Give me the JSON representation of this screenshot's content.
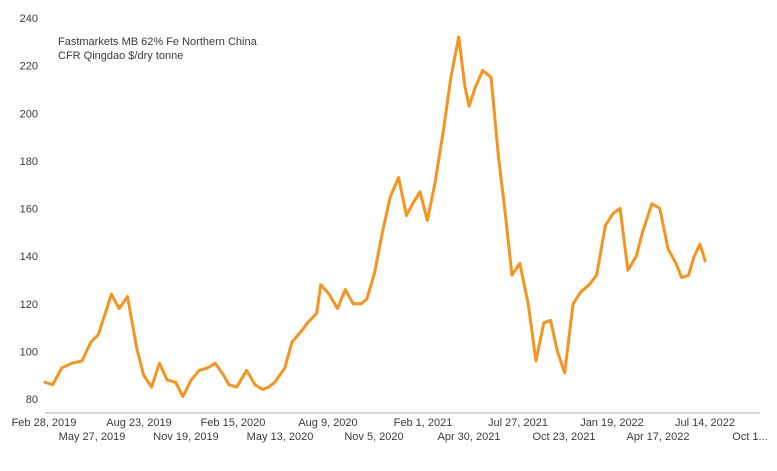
{
  "chart_data": {
    "type": "line",
    "title": "",
    "xlabel": "",
    "ylabel": "",
    "legend_lines": [
      "Fastmarkets MB 62% Fe Northern China",
      "CFR Qingdao $/dry tonne"
    ],
    "ylim": [
      80,
      240
    ],
    "y_ticks": [
      "80",
      "100",
      "120",
      "140",
      "160",
      "180",
      "200",
      "220",
      "240"
    ],
    "x_ticks_upper": [
      "Feb 28, 2019",
      "Aug 23, 2019",
      "Feb 15, 2020",
      "Aug 9, 2020",
      "Feb 1, 2021",
      "Jul 27, 2021",
      "Jan 19, 2022",
      "Jul 14, 2022"
    ],
    "x_ticks_lower": [
      "May 27, 2019",
      "Nov 19, 2019",
      "May 13, 2020",
      "Nov 5, 2020",
      "Apr 30, 2021",
      "Oct 23, 2021",
      "Apr 17, 2022",
      "Oct 1..."
    ],
    "x_range": [
      "2019-02-28",
      "2022-10-11"
    ],
    "grid": false,
    "legend_position": "top-left",
    "colors": {
      "series": "#f7941d",
      "axis": "#b0b0b0",
      "text": "#3a3a3a"
    },
    "series": [
      {
        "name": "Fastmarkets MB 62% Fe Northern China CFR Qingdao $/dry tonne",
        "x": [
          "2019-02-28",
          "2019-03-15",
          "2019-04-01",
          "2019-04-20",
          "2019-05-10",
          "2019-05-27",
          "2019-06-10",
          "2019-06-25",
          "2019-07-05",
          "2019-07-20",
          "2019-08-05",
          "2019-08-23",
          "2019-09-05",
          "2019-09-20",
          "2019-10-05",
          "2019-10-20",
          "2019-11-05",
          "2019-11-19",
          "2019-12-05",
          "2019-12-20",
          "2020-01-05",
          "2020-01-20",
          "2020-02-05",
          "2020-02-15",
          "2020-03-01",
          "2020-03-20",
          "2020-04-05",
          "2020-04-20",
          "2020-05-01",
          "2020-05-13",
          "2020-06-01",
          "2020-06-15",
          "2020-07-01",
          "2020-07-15",
          "2020-08-01",
          "2020-08-09",
          "2020-08-25",
          "2020-09-10",
          "2020-09-25",
          "2020-10-10",
          "2020-10-25",
          "2020-11-05",
          "2020-11-20",
          "2020-12-05",
          "2020-12-20",
          "2021-01-05",
          "2021-01-20",
          "2021-02-01",
          "2021-02-15",
          "2021-03-01",
          "2021-03-15",
          "2021-04-01",
          "2021-04-15",
          "2021-04-30",
          "2021-05-12",
          "2021-05-20",
          "2021-06-01",
          "2021-06-15",
          "2021-07-01",
          "2021-07-15",
          "2021-07-27",
          "2021-08-10",
          "2021-08-25",
          "2021-09-10",
          "2021-09-25",
          "2021-10-10",
          "2021-10-23",
          "2021-11-05",
          "2021-11-19",
          "2021-12-05",
          "2021-12-20",
          "2022-01-05",
          "2022-01-19",
          "2022-02-05",
          "2022-02-20",
          "2022-03-05",
          "2022-03-20",
          "2022-04-05",
          "2022-04-17",
          "2022-05-05",
          "2022-05-20",
          "2022-06-05",
          "2022-06-20",
          "2022-07-01",
          "2022-07-14",
          "2022-07-25",
          "2022-08-05",
          "2022-08-15"
        ],
        "values": [
          87,
          86,
          93,
          95,
          96,
          104,
          107,
          117,
          124,
          118,
          123,
          101,
          90,
          85,
          95,
          88,
          87,
          81,
          88,
          92,
          93,
          95,
          90,
          86,
          85,
          92,
          86,
          84,
          85,
          87,
          93,
          104,
          108,
          112,
          116,
          128,
          124,
          118,
          126,
          120,
          120,
          122,
          133,
          150,
          165,
          173,
          157,
          162,
          167,
          155,
          170,
          193,
          215,
          232,
          211,
          203,
          211,
          218,
          215,
          182,
          160,
          132,
          137,
          120,
          96,
          112,
          113,
          100,
          91,
          120,
          125,
          128,
          132,
          153,
          158,
          160,
          134,
          140,
          150,
          162,
          160,
          143,
          137,
          131,
          132,
          140,
          145,
          138
        ]
      }
    ]
  }
}
